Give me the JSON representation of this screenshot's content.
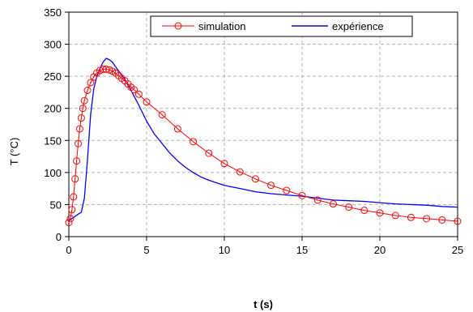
{
  "chart_data": {
    "type": "line",
    "title": "",
    "xlabel": "t (s)",
    "ylabel": "T (°C)",
    "xlim": [
      0,
      25
    ],
    "ylim": [
      0,
      350
    ],
    "x_ticks": [
      0,
      5,
      10,
      15,
      20,
      25
    ],
    "y_ticks": [
      0,
      50,
      100,
      150,
      200,
      250,
      300,
      350
    ],
    "x_tick_labels": [
      "0",
      "5",
      "10",
      "15",
      "20",
      "25"
    ],
    "y_tick_labels": [
      "0",
      "50",
      "100",
      "150",
      "200",
      "250",
      "300",
      "350"
    ],
    "grid": true,
    "legend_position": "top-right",
    "series": [
      {
        "name": "simulation",
        "color": "#ff0000",
        "marker": "circle",
        "x": [
          0.0,
          0.1,
          0.2,
          0.3,
          0.4,
          0.5,
          0.6,
          0.7,
          0.8,
          0.9,
          1.0,
          1.2,
          1.4,
          1.6,
          1.8,
          2.0,
          2.2,
          2.4,
          2.6,
          2.8,
          3.0,
          3.2,
          3.4,
          3.6,
          3.8,
          4.0,
          4.2,
          4.5,
          5.0,
          6.0,
          7.0,
          8.0,
          9.0,
          10.0,
          11.0,
          12.0,
          13.0,
          14.0,
          15.0,
          16.0,
          17.0,
          18.0,
          19.0,
          20.0,
          21.0,
          22.0,
          23.0,
          24.0,
          25.0
        ],
        "y": [
          22,
          28,
          42,
          62,
          90,
          118,
          145,
          168,
          185,
          200,
          212,
          228,
          240,
          249,
          255,
          259,
          261,
          261,
          260,
          258,
          255,
          251,
          247,
          243,
          238,
          233,
          229,
          222,
          210,
          190,
          168,
          148,
          130,
          114,
          101,
          90,
          80,
          72,
          64,
          57,
          51,
          46,
          41,
          37,
          33,
          30,
          28,
          26,
          24
        ]
      },
      {
        "name": "expérience",
        "color": "#0000ff",
        "marker": "none",
        "x": [
          0.0,
          0.3,
          0.6,
          0.8,
          1.0,
          1.2,
          1.4,
          1.6,
          1.8,
          2.0,
          2.2,
          2.4,
          2.6,
          2.8,
          3.0,
          3.3,
          3.6,
          4.0,
          4.5,
          5.0,
          5.5,
          6.0,
          6.5,
          7.0,
          7.5,
          8.0,
          8.5,
          9.0,
          10.0,
          11.0,
          12.0,
          13.0,
          14.0,
          15.0,
          16.0,
          17.0,
          18.0,
          19.0,
          20.0,
          21.0,
          22.0,
          23.0,
          24.0,
          25.0
        ],
        "y": [
          25,
          30,
          35,
          38,
          60,
          120,
          190,
          230,
          250,
          262,
          272,
          278,
          276,
          272,
          265,
          255,
          245,
          228,
          205,
          180,
          160,
          145,
          130,
          118,
          108,
          100,
          93,
          88,
          80,
          75,
          70,
          67,
          65,
          63,
          60,
          57,
          56,
          55,
          53,
          51,
          50,
          49,
          47,
          46
        ]
      }
    ]
  }
}
